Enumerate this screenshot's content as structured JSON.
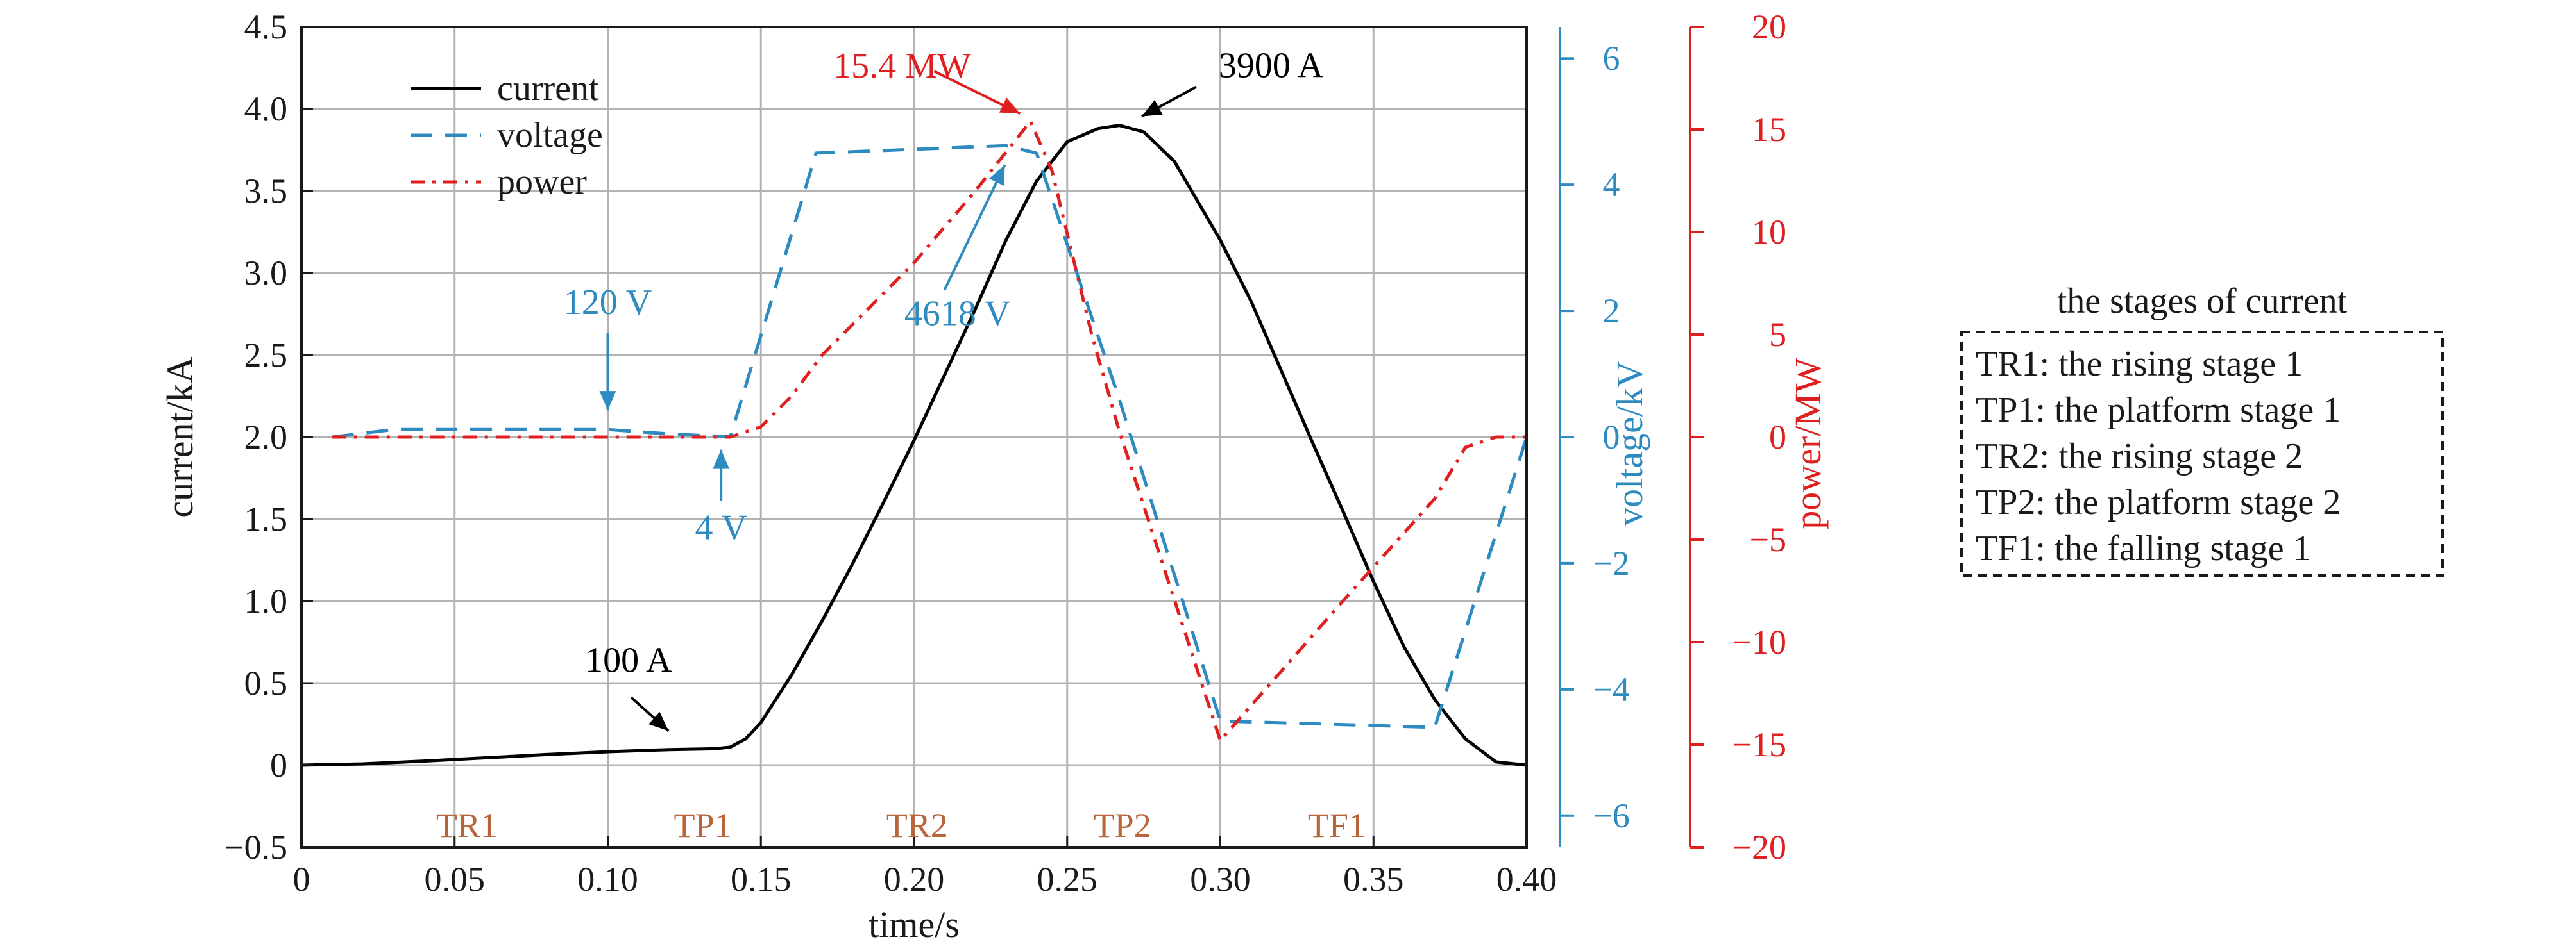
{
  "chart_data": {
    "type": "line",
    "xlabel": "time/s",
    "xlim": [
      0,
      0.4
    ],
    "xticks": [
      "0",
      "0.05",
      "0.10",
      "0.15",
      "0.20",
      "0.25",
      "0.30",
      "0.35",
      "0.40"
    ],
    "axes": {
      "left": {
        "label": "current/kA",
        "lim": [
          -0.5,
          4.5
        ],
        "color": "#000000",
        "ticks": [
          "−0.5",
          "0",
          "0.5",
          "1.0",
          "1.5",
          "2.0",
          "2.5",
          "3.0",
          "3.5",
          "4.0",
          "4.5"
        ]
      },
      "right1": {
        "label": "voltage/kV",
        "lim": [
          -6.5,
          6.5
        ],
        "color": "#2e8bc0",
        "ticks": [
          "−6",
          "−4",
          "−2",
          "0",
          "2",
          "4",
          "6"
        ]
      },
      "right2": {
        "label": "power/MW",
        "lim": [
          -20,
          20
        ],
        "color": "#e02020",
        "ticks": [
          "−20",
          "−15",
          "−10",
          "−5",
          "0",
          "5",
          "10",
          "15",
          "20"
        ]
      }
    },
    "grid": true,
    "legend_position": "top-left",
    "series": [
      {
        "name": "current",
        "axis": "left",
        "color": "#000000",
        "style": "solid",
        "points": [
          [
            0,
            0
          ],
          [
            0.02,
            0.008
          ],
          [
            0.04,
            0.025
          ],
          [
            0.06,
            0.045
          ],
          [
            0.08,
            0.065
          ],
          [
            0.1,
            0.082
          ],
          [
            0.12,
            0.095
          ],
          [
            0.135,
            0.1
          ],
          [
            0.14,
            0.11
          ],
          [
            0.145,
            0.16
          ],
          [
            0.15,
            0.26
          ],
          [
            0.16,
            0.55
          ],
          [
            0.17,
            0.88
          ],
          [
            0.18,
            1.23
          ],
          [
            0.19,
            1.6
          ],
          [
            0.2,
            1.98
          ],
          [
            0.21,
            2.38
          ],
          [
            0.22,
            2.78
          ],
          [
            0.23,
            3.2
          ],
          [
            0.24,
            3.56
          ],
          [
            0.25,
            3.8
          ],
          [
            0.26,
            3.88
          ],
          [
            0.267,
            3.9
          ],
          [
            0.275,
            3.86
          ],
          [
            0.285,
            3.68
          ],
          [
            0.3,
            3.2
          ],
          [
            0.31,
            2.83
          ],
          [
            0.32,
            2.4
          ],
          [
            0.33,
            1.97
          ],
          [
            0.34,
            1.55
          ],
          [
            0.35,
            1.12
          ],
          [
            0.36,
            0.72
          ],
          [
            0.37,
            0.4
          ],
          [
            0.38,
            0.16
          ],
          [
            0.39,
            0.02
          ],
          [
            0.4,
            0
          ]
        ]
      },
      {
        "name": "voltage",
        "axis": "right1",
        "color": "#2e8bc0",
        "style": "dashed",
        "points": [
          [
            0.01,
            0
          ],
          [
            0.03,
            0.12
          ],
          [
            0.1,
            0.12
          ],
          [
            0.12,
            0.05
          ],
          [
            0.14,
            0.004
          ],
          [
            0.168,
            4.5
          ],
          [
            0.23,
            4.618
          ],
          [
            0.24,
            4.5
          ],
          [
            0.267,
            0.6
          ],
          [
            0.3,
            -4.5
          ],
          [
            0.37,
            -4.6
          ],
          [
            0.4,
            0
          ]
        ]
      },
      {
        "name": "power",
        "axis": "right2",
        "color": "#e02020",
        "style": "dashdot",
        "points": [
          [
            0.01,
            0
          ],
          [
            0.13,
            0
          ],
          [
            0.14,
            0
          ],
          [
            0.15,
            0.5
          ],
          [
            0.16,
            2
          ],
          [
            0.17,
            4
          ],
          [
            0.2,
            8.5
          ],
          [
            0.22,
            12
          ],
          [
            0.238,
            15.4
          ],
          [
            0.245,
            13
          ],
          [
            0.258,
            5
          ],
          [
            0.267,
            0.3
          ],
          [
            0.3,
            -14.8
          ],
          [
            0.34,
            -8
          ],
          [
            0.37,
            -3
          ],
          [
            0.38,
            -0.5
          ],
          [
            0.39,
            0
          ],
          [
            0.4,
            0
          ]
        ]
      }
    ],
    "stage_labels": [
      {
        "text": "TR1",
        "x": 0.054
      },
      {
        "text": "TP1",
        "x": 0.131
      },
      {
        "text": "TR2",
        "x": 0.201
      },
      {
        "text": "TP2",
        "x": 0.268
      },
      {
        "text": "TF1",
        "x": 0.338
      }
    ],
    "annotations": [
      {
        "id": "ann-100a",
        "text": "100 A",
        "color": "#000000",
        "axis": "left",
        "point": [
          0.124,
          0.1
        ]
      },
      {
        "id": "ann-3900a",
        "text": "3900 A",
        "color": "#000000",
        "axis": "left",
        "point": [
          0.267,
          3.9
        ]
      },
      {
        "id": "ann-154mw",
        "text": "15.4 MW",
        "color": "#e02020",
        "axis": "right2",
        "point": [
          0.238,
          15.4
        ]
      },
      {
        "id": "ann-120v",
        "text": "120 V",
        "color": "#2e8bc0",
        "axis": "right1",
        "point": [
          0.1,
          0.12
        ]
      },
      {
        "id": "ann-4v",
        "text": "4 V",
        "color": "#2e8bc0",
        "axis": "right1",
        "point": [
          0.137,
          0.004
        ]
      },
      {
        "id": "ann-4618v",
        "text": "4618 V",
        "color": "#2e8bc0",
        "axis": "right1",
        "point": [
          0.233,
          4.618
        ]
      }
    ],
    "stages_box": {
      "title": "the stages of current",
      "items": [
        "TR1: the rising stage 1",
        "TP1: the platform stage 1",
        "TR2: the rising stage 2",
        "TP2: the platform stage 2",
        "TF1: the falling stage 1"
      ]
    },
    "stage_label_color": "#b8653a"
  }
}
